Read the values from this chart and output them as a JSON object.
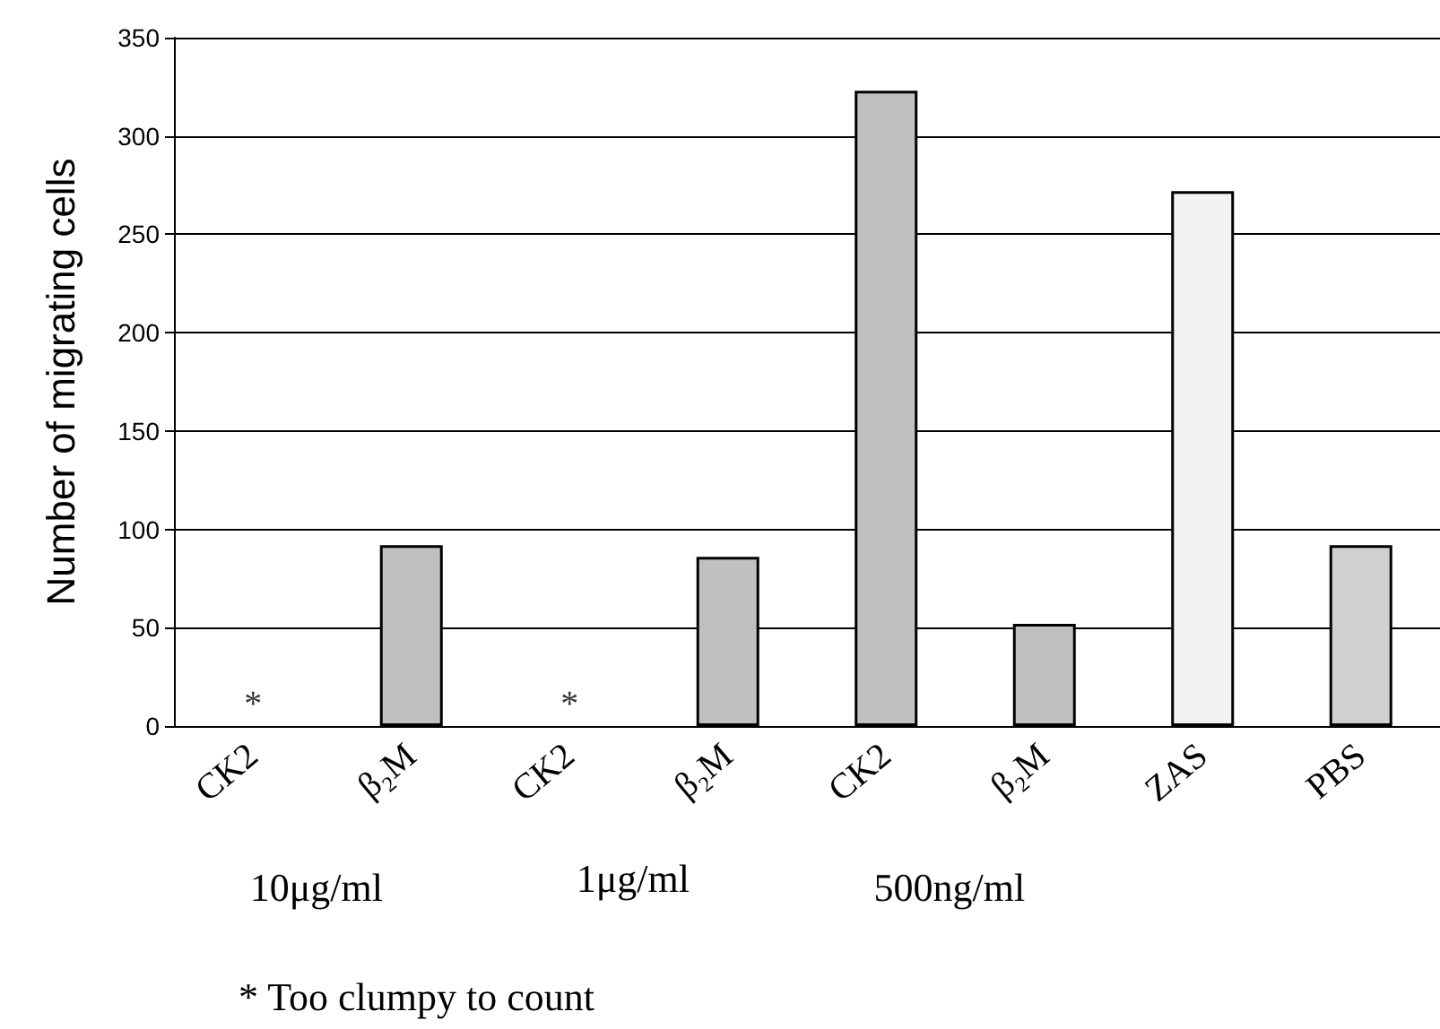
{
  "chart_data": {
    "type": "bar",
    "ylabel": "Number of migrating cells",
    "categories": [
      "CK2",
      "β₂M",
      "CK2",
      "β₂M",
      "CK2",
      "β₂M",
      "ZAS",
      "PBS"
    ],
    "values": [
      null,
      92,
      null,
      86,
      323,
      52,
      272,
      92
    ],
    "value_labels": [
      "*",
      null,
      "*",
      null,
      null,
      null,
      null,
      null
    ],
    "colors": [
      "#c0c0c0",
      "#c0c0c0",
      "#c0c0c0",
      "#c0c0c0",
      "#c0c0c0",
      "#c0c0c0",
      "#f2f2f2",
      "#d0d0d0"
    ],
    "ylim": [
      0,
      350
    ],
    "yticks": [
      0,
      50,
      100,
      150,
      200,
      250,
      300,
      350
    ],
    "grid": "y",
    "annotations": [
      "10μg/ml",
      "1μg/ml",
      "500ng/ml",
      "* Too clumpy to count"
    ]
  }
}
